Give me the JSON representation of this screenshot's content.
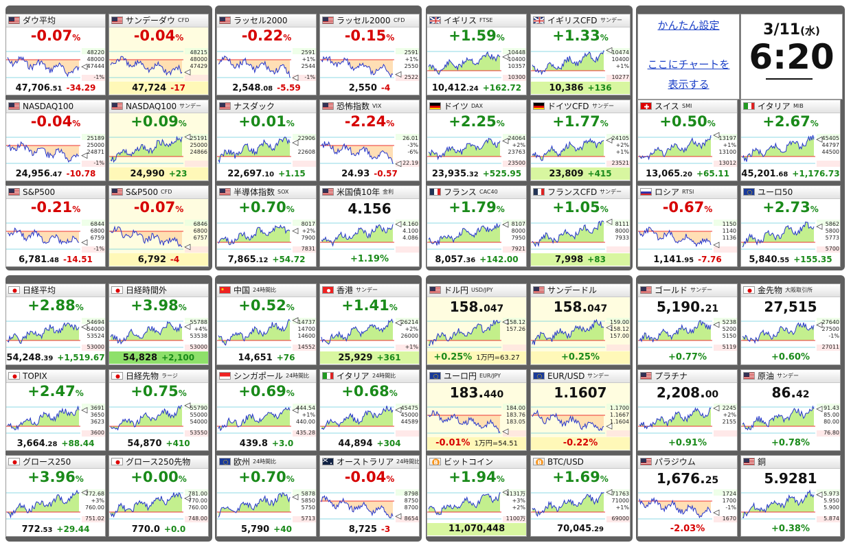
{
  "controls": {
    "settings_link": "かんたん設定",
    "chart_link_line1": "ここにチャートを",
    "chart_link_line2": "表示する"
  },
  "clock": {
    "date": "3/11",
    "weekday": "(水)",
    "time": "6:20"
  },
  "colors": {
    "up": "#1a8a1a",
    "down": "#d60000",
    "panel": "#5f5f5f"
  },
  "cards": [
    {
      "title": "ダウ平均",
      "sub": "",
      "flag": "us",
      "dir": "dn",
      "pct": "-0.07",
      "pu": "%",
      "v1": "47,706",
      "v2": ".51",
      "chg": "-34.29",
      "yl": [
        "48220",
        "48000",
        "47444",
        "-1%"
      ],
      "bg": ""
    },
    {
      "title": "サンデーダウ",
      "sub": "CFD",
      "flag": "us",
      "dir": "dn",
      "pct": "-0.04",
      "pu": "%",
      "v1": "47,724",
      "v2": "",
      "chg": "-17",
      "yl": [
        "48215",
        "48000",
        "47429"
      ],
      "bg": "yel"
    },
    {
      "title": "ラッセル2000",
      "sub": "",
      "flag": "us",
      "dir": "dn",
      "pct": "-0.22",
      "pu": "%",
      "v1": "2,548",
      "v2": ".08",
      "chg": "-5.59",
      "yl": [
        "2591",
        "+1%",
        "2544",
        "-1%"
      ],
      "bg": ""
    },
    {
      "title": "ラッセル2000",
      "sub": "CFD",
      "flag": "us",
      "dir": "dn",
      "pct": "-0.15",
      "pu": "%",
      "v1": "2,550",
      "v2": "",
      "chg": "-4",
      "yl": [
        "2591",
        "+1%",
        "2550",
        "2522"
      ],
      "bg": ""
    },
    {
      "title": "イギリス",
      "sub": "FTSE",
      "flag": "uk",
      "dir": "up",
      "pct": "+1.59",
      "pu": "%",
      "v1": "10,412",
      "v2": ".24",
      "chg": "+162.72",
      "yl": [
        "10448",
        "10400",
        "10357",
        "10300"
      ],
      "bg": ""
    },
    {
      "title": "イギリスCFD",
      "sub": "サンデー",
      "flag": "uk",
      "dir": "up",
      "pct": "+1.33",
      "pu": "%",
      "v1": "10,386",
      "v2": "",
      "chg": "+136",
      "yl": [
        "10474",
        "10400",
        "+1%",
        "10277"
      ],
      "bg": "gbg"
    },
    {
      "title": "NASDAQ100",
      "sub": "",
      "flag": "us",
      "dir": "dn",
      "pct": "-0.04",
      "pu": "%",
      "v1": "24,956",
      "v2": ".47",
      "chg": "-10.78",
      "yl": [
        "25189",
        "25000",
        "24871",
        "-1%"
      ],
      "bg": ""
    },
    {
      "title": "NASDAQ100",
      "sub": "サンデー",
      "flag": "us",
      "dir": "up",
      "pct": "+0.09",
      "pu": "%",
      "v1": "24,990",
      "v2": "",
      "chg": "+23",
      "yl": [
        "25191",
        "25000",
        "24866"
      ],
      "bg": "yel"
    },
    {
      "title": "ナスダック",
      "sub": "",
      "flag": "us",
      "dir": "up",
      "pct": "+0.01",
      "pu": "%",
      "v1": "22,697",
      "v2": ".10",
      "chg": "+1.15",
      "yl": [
        "22906",
        "",
        "22608"
      ],
      "bg": ""
    },
    {
      "title": "恐怖指数",
      "sub": "VIX",
      "flag": "us",
      "dir": "dn",
      "pct": "-2.24",
      "pu": "%",
      "v1": "24.93",
      "v2": "",
      "chg": "-0.57",
      "yl": [
        "26.01",
        "-3%",
        "-6%",
        "22.19"
      ],
      "bg": ""
    },
    {
      "title": "ドイツ",
      "sub": "DAX",
      "flag": "de",
      "dir": "up",
      "pct": "+2.25",
      "pu": "%",
      "v1": "23,935",
      "v2": ".32",
      "chg": "+525.95",
      "yl": [
        "24064",
        "+2%",
        "23763",
        "23500"
      ],
      "bg": ""
    },
    {
      "title": "ドイツCFD",
      "sub": "サンデー",
      "flag": "de",
      "dir": "up",
      "pct": "+1.77",
      "pu": "%",
      "v1": "23,809",
      "v2": "",
      "chg": "+415",
      "yl": [
        "24105",
        "+2%",
        "+1%",
        "23521"
      ],
      "bg": "gbg"
    },
    {
      "title": "スイス",
      "sub": "SMI",
      "flag": "ch",
      "dir": "up",
      "pct": "+0.50",
      "pu": "%",
      "v1": "13,065",
      "v2": ".20",
      "chg": "+65.11",
      "yl": [
        "13197",
        "+1%",
        "13100",
        "13012"
      ],
      "bg": ""
    },
    {
      "title": "イタリア",
      "sub": "MIB",
      "flag": "it",
      "dir": "up",
      "pct": "+2.67",
      "pu": "%",
      "v1": "45,201",
      "v2": ".68",
      "chg": "+1,176.73",
      "yl": [
        "45405",
        "44797",
        "44500"
      ],
      "bg": ""
    },
    {
      "title": "S&P500",
      "sub": "",
      "flag": "us",
      "dir": "dn",
      "pct": "-0.21",
      "pu": "%",
      "v1": "6,781",
      "v2": ".48",
      "chg": "-14.51",
      "yl": [
        "6844",
        "6800",
        "6759",
        "-1%"
      ],
      "bg": ""
    },
    {
      "title": "S&P500",
      "sub": "CFD",
      "flag": "us",
      "dir": "dn",
      "pct": "-0.07",
      "pu": "%",
      "v1": "6,792",
      "v2": "",
      "chg": "-4",
      "yl": [
        "6846",
        "6800",
        "6757"
      ],
      "bg": "yel"
    },
    {
      "title": "半導体指数",
      "sub": "SOX",
      "flag": "us",
      "dir": "up",
      "pct": "+0.70",
      "pu": "%",
      "v1": "7,865",
      "v2": ".12",
      "chg": "+54.72",
      "yl": [
        "8017",
        "+2%",
        "7900",
        "7831"
      ],
      "bg": ""
    },
    {
      "title": "米国債10年",
      "sub": "金利",
      "flag": "us",
      "dir": "lev",
      "pct": "4.156",
      "pu": "",
      "v1": "",
      "v2": "",
      "chg": "+1.19%",
      "yl": [
        "4.160",
        "4.100",
        "4.086"
      ],
      "bg": ""
    },
    {
      "title": "フランス",
      "sub": "CAC40",
      "flag": "fr",
      "dir": "up",
      "pct": "+1.79",
      "pu": "%",
      "v1": "8,057",
      "v2": ".36",
      "chg": "+142.00",
      "yl": [
        "8107",
        "8000",
        "7950",
        "7921"
      ],
      "bg": ""
    },
    {
      "title": "フランスCFD",
      "sub": "サンデー",
      "flag": "fr",
      "dir": "up",
      "pct": "+1.05",
      "pu": "%",
      "v1": "7,998",
      "v2": "",
      "chg": "+83",
      "yl": [
        "8111",
        "8000",
        "7933"
      ],
      "bg": "gbg"
    },
    {
      "title": "ロシア",
      "sub": "RTSI",
      "flag": "ru",
      "dir": "dn",
      "pct": "-0.67",
      "pu": "%",
      "v1": "1,141",
      "v2": ".95",
      "chg": "-7.76",
      "yl": [
        "1150",
        "1140",
        "1136"
      ],
      "bg": ""
    },
    {
      "title": "ユーロ50",
      "sub": "",
      "flag": "eu",
      "dir": "up",
      "pct": "+2.73",
      "pu": "%",
      "v1": "5,840",
      "v2": ".55",
      "chg": "+155.35",
      "yl": [
        "5862",
        "5800",
        "5773",
        "5700"
      ],
      "bg": ""
    },
    {
      "title": "日経平均",
      "sub": "",
      "flag": "jp",
      "dir": "up",
      "pct": "+2.88",
      "pu": "%",
      "v1": "54,248",
      "v2": ".39",
      "chg": "+1,519.67",
      "yl": [
        "54694",
        "54000",
        "53524",
        "53000"
      ],
      "bg": ""
    },
    {
      "title": "日経時間外",
      "sub": "",
      "flag": "jp",
      "dir": "up",
      "pct": "+3.98",
      "pu": "%",
      "v1": "54,828",
      "v2": "",
      "chg": "+2,100",
      "yl": [
        "55788",
        "+4%",
        "53538",
        "53000"
      ],
      "bg": "gg"
    },
    {
      "title": "中国",
      "sub": "24時間比",
      "flag": "cn",
      "dir": "up",
      "pct": "+0.52",
      "pu": "%",
      "v1": "14,651",
      "v2": "",
      "chg": "+76",
      "yl": [
        "14737",
        "14700",
        "14600",
        "14552"
      ],
      "bg": ""
    },
    {
      "title": "香港",
      "sub": "サンデー",
      "flag": "hk",
      "dir": "up",
      "pct": "+1.41",
      "pu": "%",
      "v1": "25,929",
      "v2": "",
      "chg": "+361",
      "yl": [
        "26214",
        "+2%",
        "26000",
        "+1%"
      ],
      "bg": "gbg"
    },
    {
      "title": "ドル円",
      "sub": "USD/JPY",
      "flag": "us",
      "dir": "lev",
      "pct": "158.",
      "pu": "047",
      "v1": "",
      "v2": "",
      "chg": "+0.25%",
      "note": "1万円=63.27",
      "yl": [
        "158.12",
        "157.26"
      ],
      "bg": "yel"
    },
    {
      "title": "サンデードル",
      "sub": "",
      "flag": "us",
      "dir": "lev",
      "pct": "158.",
      "pu": "047",
      "v1": "",
      "v2": "",
      "chg": "+0.25%",
      "yl": [
        "159.00",
        "158.12",
        "157.00"
      ],
      "bg": "yel"
    },
    {
      "title": "ゴールド",
      "sub": "サンデー",
      "flag": "us",
      "dir": "lev",
      "pct": "5,190.",
      "pu": "21",
      "v1": "",
      "v2": "",
      "chg": "+0.77%",
      "yl": [
        "5238",
        "5200",
        "5150",
        "5119"
      ],
      "bg": ""
    },
    {
      "title": "金先物",
      "sub": "大阪取引所",
      "flag": "jp",
      "dir": "lev",
      "pct": "27,515",
      "pu": "",
      "v1": "",
      "v2": "",
      "chg": "+0.60%",
      "yl": [
        "27640",
        "27500",
        "-1%",
        "27011"
      ],
      "bg": ""
    },
    {
      "title": "TOPIX",
      "sub": "",
      "flag": "jp",
      "dir": "up",
      "pct": "+2.47",
      "pu": "%",
      "v1": "3,664",
      "v2": ".28",
      "chg": "+88.44",
      "yl": [
        "3691",
        "3650",
        "3623",
        "3600"
      ],
      "bg": ""
    },
    {
      "title": "日経先物",
      "sub": "ラージ",
      "flag": "jp",
      "dir": "up",
      "pct": "+0.75",
      "pu": "%",
      "v1": "54,870",
      "v2": "",
      "chg": "+410",
      "yl": [
        "55790",
        "55000",
        "54000",
        "53550"
      ],
      "bg": ""
    },
    {
      "title": "シンガポール",
      "sub": "24時間比",
      "flag": "sg",
      "dir": "up",
      "pct": "+0.69",
      "pu": "%",
      "v1": "439.8",
      "v2": "",
      "chg": "+3.0",
      "yl": [
        "444.54",
        "+1%",
        "440.00",
        "435.28"
      ],
      "bg": ""
    },
    {
      "title": "イタリア",
      "sub": "24時間比",
      "flag": "it",
      "dir": "up",
      "pct": "+0.68",
      "pu": "%",
      "v1": "44,894",
      "v2": "",
      "chg": "+304",
      "yl": [
        "45475",
        "45000",
        "44589"
      ],
      "bg": ""
    },
    {
      "title": "ユーロ円",
      "sub": "EUR/JPY",
      "flag": "eu",
      "dir": "lev",
      "pct": "183.",
      "pu": "440",
      "v1": "",
      "v2": "",
      "chg": "-0.01%",
      "note": "1万円=54.51",
      "yl": [
        "184.00",
        "183.76",
        "183.05"
      ],
      "bg": "yel"
    },
    {
      "title": "EUR/USD",
      "sub": "サンデー",
      "flag": "eu",
      "dir": "lev",
      "pct": "1.1607",
      "pu": "",
      "v1": "",
      "v2": "",
      "chg": "-0.22%",
      "yl": [
        "1.1700",
        "1.1667",
        "1.1604"
      ],
      "bg": "yel"
    },
    {
      "title": "プラチナ",
      "sub": "",
      "flag": "us",
      "dir": "lev",
      "pct": "2,208.",
      "pu": "00",
      "v1": "",
      "v2": "",
      "chg": "+0.91%",
      "yl": [
        "2245",
        "+2%",
        "2155"
      ],
      "bg": ""
    },
    {
      "title": "原油",
      "sub": "サンデー",
      "flag": "us",
      "dir": "lev",
      "pct": "86.",
      "pu": "42",
      "v1": "",
      "v2": "",
      "chg": "+0.78%",
      "yl": [
        "91.43",
        "85.00",
        "80.00",
        "76.80"
      ],
      "bg": ""
    },
    {
      "title": "グロース250",
      "sub": "",
      "flag": "jp",
      "dir": "up",
      "pct": "+3.96",
      "pu": "%",
      "v1": "772",
      "v2": ".53",
      "chg": "+29.44",
      "yl": [
        "772.68",
        "+3%",
        "760.00",
        "751.02"
      ],
      "bg": ""
    },
    {
      "title": "グロース250先物",
      "sub": "",
      "flag": "jp",
      "dir": "up",
      "pct": "+0.00",
      "pu": "%",
      "v1": "770.0",
      "v2": "",
      "chg": "+0.0",
      "yl": [
        "781.00",
        "770.00",
        "760.00",
        "748.00"
      ],
      "bg": ""
    },
    {
      "title": "欧州",
      "sub": "24時間比",
      "flag": "eu",
      "dir": "up",
      "pct": "+0.70",
      "pu": "%",
      "v1": "5,790",
      "v2": "",
      "chg": "+40",
      "yl": [
        "5878",
        "5850",
        "5750",
        "5713"
      ],
      "bg": ""
    },
    {
      "title": "オーストラリア",
      "sub": "24時間比",
      "flag": "au",
      "dir": "dn",
      "pct": "-0.04",
      "pu": "%",
      "v1": "8,725",
      "v2": "",
      "chg": "-3",
      "yl": [
        "8798",
        "8750",
        "8700",
        "8654"
      ],
      "bg": ""
    },
    {
      "title": "ビットコイン",
      "sub": "",
      "flag": "btc",
      "dir": "up",
      "pct": "+1.94",
      "pu": "%",
      "v1": "11,070,448",
      "v2": "",
      "chg": "",
      "yl": [
        "1131万",
        "+3%",
        "+2%",
        "1100万"
      ],
      "bg": "gbg"
    },
    {
      "title": "BTC/USD",
      "sub": "",
      "flag": "btc",
      "dir": "up",
      "pct": "+1.69",
      "pu": "%",
      "v1": "70,045",
      "v2": ".29",
      "chg": "",
      "yl": [
        "71763",
        "71000",
        "+1%",
        "69000"
      ],
      "bg": ""
    },
    {
      "title": "パラジウム",
      "sub": "",
      "flag": "us",
      "dir": "lev",
      "pct": "1,676.",
      "pu": "25",
      "v1": "",
      "v2": "",
      "chg": "-2.03%",
      "yl": [
        "1724",
        "1700",
        "-1%",
        "1670"
      ],
      "bg": ""
    },
    {
      "title": "銅",
      "sub": "",
      "flag": "us",
      "dir": "lev",
      "pct": "5.9281",
      "pu": "",
      "v1": "",
      "v2": "",
      "chg": "+0.38%",
      "yl": [
        "5.973",
        "5.950",
        "5.900",
        "5.874"
      ],
      "bg": ""
    }
  ]
}
